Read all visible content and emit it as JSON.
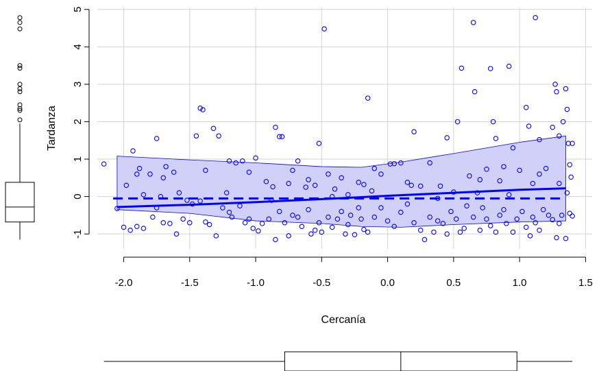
{
  "chart_data": {
    "type": "scatter",
    "xlabel": "Cercanía",
    "ylabel": "Tardanza",
    "xlim": [
      -2.2,
      1.55
    ],
    "ylim": [
      -1.4,
      5.05
    ],
    "xticks": [
      -2.0,
      -1.5,
      -1.0,
      -0.5,
      0.0,
      0.5,
      1.0,
      1.5
    ],
    "xtick_labels": [
      "-2.0",
      "-1.5",
      "-1.0",
      "-0.5",
      "0.0",
      "0.5",
      "1.0",
      "1.5"
    ],
    "yticks": [
      -1,
      0,
      1,
      2,
      3,
      4,
      5
    ],
    "ytick_labels": [
      "-1",
      "0",
      "1",
      "2",
      "3",
      "4",
      "5"
    ],
    "grid": true,
    "point_color": "#0000ff",
    "band_fill": "#d0d0f8",
    "points": [
      [
        -2.15,
        0.87
      ],
      [
        -1.93,
        1.22
      ],
      [
        -1.9,
        0.6
      ],
      [
        -1.88,
        0.75
      ],
      [
        -1.85,
        0.05
      ],
      [
        -1.8,
        0.6
      ],
      [
        -1.75,
        1.55
      ],
      [
        -1.7,
        0.5
      ],
      [
        -1.68,
        0.8
      ],
      [
        -1.62,
        0.65
      ],
      [
        -1.58,
        0.1
      ],
      [
        -1.45,
        1.62
      ],
      [
        -1.42,
        2.36
      ],
      [
        -1.4,
        2.32
      ],
      [
        -1.38,
        0.7
      ],
      [
        -1.32,
        1.82
      ],
      [
        -1.28,
        1.62
      ],
      [
        -1.2,
        0.95
      ],
      [
        -1.15,
        0.9
      ],
      [
        -1.1,
        0.95
      ],
      [
        -1.05,
        0.65
      ],
      [
        -1.0,
        1.03
      ],
      [
        -0.92,
        0.4
      ],
      [
        -0.87,
        0.26
      ],
      [
        -0.85,
        1.85
      ],
      [
        -0.82,
        1.6
      ],
      [
        -0.8,
        1.6
      ],
      [
        -0.75,
        0.35
      ],
      [
        -0.72,
        0.7
      ],
      [
        -0.68,
        0.95
      ],
      [
        -0.6,
        0.45
      ],
      [
        -0.55,
        0.3
      ],
      [
        -0.52,
        1.42
      ],
      [
        -0.48,
        4.48
      ],
      [
        -0.45,
        0.6
      ],
      [
        -0.4,
        0.2
      ],
      [
        -0.35,
        0.5
      ],
      [
        -0.3,
        0.05
      ],
      [
        -0.22,
        0.38
      ],
      [
        -0.18,
        0.32
      ],
      [
        -0.15,
        2.63
      ],
      [
        -0.1,
        0.75
      ],
      [
        -0.05,
        0.6
      ],
      [
        0.02,
        0.87
      ],
      [
        0.05,
        0.88
      ],
      [
        0.1,
        0.9
      ],
      [
        0.15,
        0.38
      ],
      [
        0.2,
        1.73
      ],
      [
        0.25,
        0.28
      ],
      [
        0.32,
        0.9
      ],
      [
        0.4,
        0.28
      ],
      [
        0.45,
        1.57
      ],
      [
        0.5,
        0.12
      ],
      [
        0.53,
        2.0
      ],
      [
        0.56,
        3.43
      ],
      [
        0.62,
        0.55
      ],
      [
        0.65,
        4.65
      ],
      [
        0.66,
        2.8
      ],
      [
        0.7,
        0.45
      ],
      [
        0.75,
        0.73
      ],
      [
        0.78,
        3.42
      ],
      [
        0.8,
        2.0
      ],
      [
        0.82,
        1.55
      ],
      [
        0.85,
        0.42
      ],
      [
        0.88,
        0.8
      ],
      [
        0.92,
        3.48
      ],
      [
        0.95,
        1.3
      ],
      [
        1.0,
        0.7
      ],
      [
        1.05,
        2.38
      ],
      [
        1.07,
        1.88
      ],
      [
        1.1,
        0.35
      ],
      [
        1.12,
        4.78
      ],
      [
        1.15,
        1.52
      ],
      [
        1.2,
        0.75
      ],
      [
        1.25,
        1.85
      ],
      [
        1.27,
        3.0
      ],
      [
        1.28,
        2.8
      ],
      [
        1.3,
        1.62
      ],
      [
        1.33,
        2.0
      ],
      [
        1.35,
        2.88
      ],
      [
        1.36,
        2.33
      ],
      [
        1.37,
        1.42
      ],
      [
        1.38,
        0.85
      ],
      [
        1.39,
        0.52
      ],
      [
        1.4,
        1.42
      ],
      [
        -2.05,
        -0.32
      ],
      [
        -2.0,
        -0.82
      ],
      [
        -1.95,
        -0.9
      ],
      [
        -1.9,
        -0.8
      ],
      [
        -1.85,
        -0.85
      ],
      [
        -1.78,
        -0.55
      ],
      [
        -1.75,
        -0.3
      ],
      [
        -1.7,
        -0.7
      ],
      [
        -1.65,
        -0.72
      ],
      [
        -1.6,
        -1.0
      ],
      [
        -1.55,
        -0.6
      ],
      [
        -1.5,
        -0.7
      ],
      [
        -1.48,
        -0.2
      ],
      [
        -1.42,
        -0.12
      ],
      [
        -1.38,
        -0.68
      ],
      [
        -1.35,
        -0.75
      ],
      [
        -1.3,
        -1.05
      ],
      [
        -1.25,
        -0.3
      ],
      [
        -1.2,
        -0.42
      ],
      [
        -1.18,
        -0.55
      ],
      [
        -1.12,
        -0.25
      ],
      [
        -1.08,
        -0.7
      ],
      [
        -1.05,
        -0.6
      ],
      [
        -1.02,
        -0.85
      ],
      [
        -0.98,
        -0.92
      ],
      [
        -0.95,
        -0.72
      ],
      [
        -0.9,
        -0.6
      ],
      [
        -0.85,
        -1.15
      ],
      [
        -0.82,
        -0.4
      ],
      [
        -0.78,
        -0.7
      ],
      [
        -0.75,
        -1.05
      ],
      [
        -0.72,
        -0.5
      ],
      [
        -0.68,
        -0.55
      ],
      [
        -0.65,
        -0.8
      ],
      [
        -0.6,
        -0.35
      ],
      [
        -0.58,
        -1.0
      ],
      [
        -0.55,
        -0.9
      ],
      [
        -0.52,
        -0.7
      ],
      [
        -0.5,
        -0.95
      ],
      [
        -0.45,
        -0.55
      ],
      [
        -0.42,
        -0.82
      ],
      [
        -0.38,
        -0.6
      ],
      [
        -0.35,
        -0.4
      ],
      [
        -0.32,
        -1.0
      ],
      [
        -0.3,
        -0.75
      ],
      [
        -0.28,
        -0.5
      ],
      [
        -0.25,
        -1.02
      ],
      [
        -0.22,
        -0.3
      ],
      [
        -0.2,
        -0.6
      ],
      [
        -0.18,
        -0.88
      ],
      [
        -0.15,
        -0.95
      ],
      [
        -0.1,
        -0.55
      ],
      [
        -0.05,
        -0.3
      ],
      [
        0.0,
        -0.65
      ],
      [
        0.05,
        -0.8
      ],
      [
        0.1,
        -0.42
      ],
      [
        0.15,
        -0.2
      ],
      [
        0.2,
        -0.7
      ],
      [
        0.25,
        -0.9
      ],
      [
        0.28,
        -1.15
      ],
      [
        0.32,
        -0.55
      ],
      [
        0.35,
        -0.95
      ],
      [
        0.38,
        -0.65
      ],
      [
        0.42,
        -0.72
      ],
      [
        0.45,
        -1.0
      ],
      [
        0.48,
        -0.4
      ],
      [
        0.52,
        -0.6
      ],
      [
        0.55,
        -0.95
      ],
      [
        0.58,
        -0.85
      ],
      [
        0.6,
        -0.25
      ],
      [
        0.65,
        -0.55
      ],
      [
        0.7,
        -0.9
      ],
      [
        0.72,
        -0.3
      ],
      [
        0.75,
        -0.6
      ],
      [
        0.78,
        -0.78
      ],
      [
        0.82,
        -0.95
      ],
      [
        0.85,
        -0.5
      ],
      [
        0.88,
        -0.35
      ],
      [
        0.9,
        -0.72
      ],
      [
        0.95,
        -0.95
      ],
      [
        0.98,
        -0.6
      ],
      [
        1.02,
        -0.4
      ],
      [
        1.05,
        -0.82
      ],
      [
        1.08,
        -1.05
      ],
      [
        1.1,
        -0.55
      ],
      [
        1.12,
        -0.7
      ],
      [
        1.15,
        -0.9
      ],
      [
        1.18,
        -0.35
      ],
      [
        1.22,
        -0.5
      ],
      [
        1.25,
        -0.62
      ],
      [
        1.28,
        -1.1
      ],
      [
        1.3,
        -0.72
      ],
      [
        1.32,
        -0.5
      ],
      [
        1.35,
        -1.12
      ],
      [
        1.38,
        -0.45
      ],
      [
        1.4,
        -0.52
      ],
      [
        -1.98,
        0.3
      ],
      [
        -1.72,
        0.0
      ],
      [
        -1.52,
        -0.1
      ],
      [
        -1.22,
        0.1
      ],
      [
        -0.88,
        -0.1
      ],
      [
        -0.62,
        0.25
      ],
      [
        -0.42,
        0.0
      ],
      [
        -0.12,
        0.15
      ],
      [
        0.18,
        0.3
      ],
      [
        0.38,
        -0.05
      ],
      [
        0.68,
        0.1
      ],
      [
        0.92,
        0.05
      ],
      [
        1.15,
        0.6
      ],
      [
        1.3,
        0.35
      ],
      [
        1.36,
        0.1
      ]
    ],
    "loess": {
      "x": [
        -2.05,
        -1.5,
        -1.0,
        -0.5,
        0.0,
        0.5,
        1.0,
        1.35
      ],
      "y": [
        -0.28,
        -0.22,
        -0.15,
        -0.07,
        0.02,
        0.1,
        0.18,
        0.22
      ]
    },
    "linear": {
      "x": [
        -2.08,
        1.35
      ],
      "y": [
        -0.05,
        -0.05
      ]
    },
    "band_upper": {
      "x": [
        -2.05,
        -1.5,
        -1.0,
        -0.5,
        -0.2,
        0.1,
        0.5,
        1.0,
        1.35
      ],
      "y": [
        1.08,
        0.98,
        0.9,
        0.8,
        0.78,
        0.92,
        1.15,
        1.45,
        1.62
      ]
    },
    "band_lower": {
      "x": [
        -2.05,
        -1.5,
        -1.0,
        -0.5,
        -0.2,
        0.1,
        0.5,
        1.0,
        1.35
      ],
      "y": [
        -0.35,
        -0.45,
        -0.65,
        -0.72,
        -0.8,
        -0.82,
        -0.75,
        -0.68,
        -0.65
      ]
    },
    "y_boxplot": {
      "whisker_low": -1.15,
      "q1": -0.68,
      "median": -0.28,
      "q3": 0.38,
      "whisker_high": 1.95,
      "outliers": [
        2.05,
        2.3,
        2.35,
        2.45,
        2.8,
        2.88,
        3.0,
        3.43,
        3.5,
        4.48,
        4.65,
        4.78
      ]
    },
    "x_boxplot": {
      "whisker_low": -2.15,
      "q1": -0.78,
      "median": 0.1,
      "q3": 0.98,
      "whisker_high": 1.4
    }
  }
}
